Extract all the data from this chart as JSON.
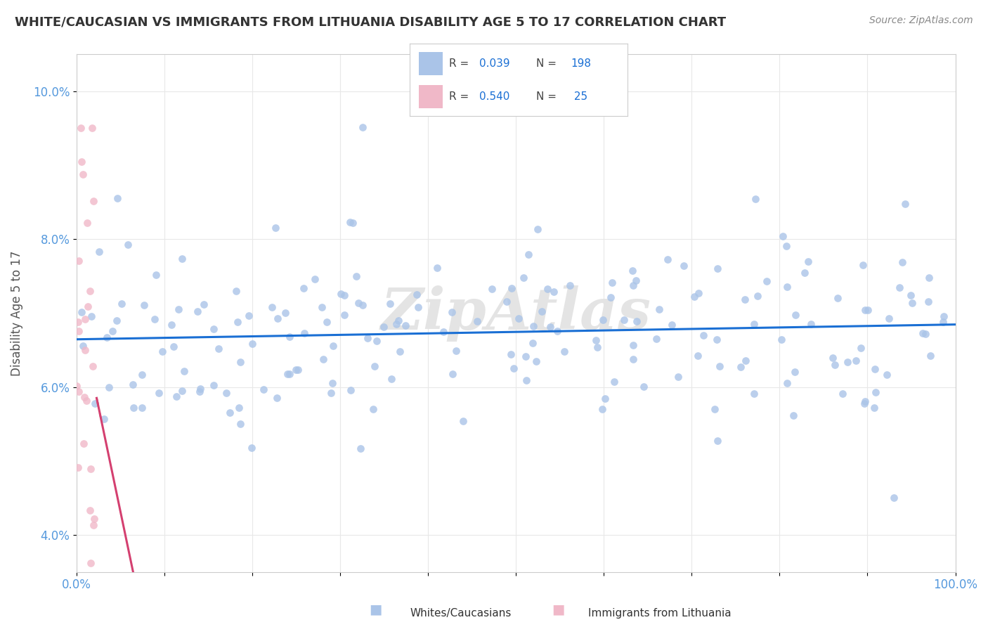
{
  "title": "WHITE/CAUCASIAN VS IMMIGRANTS FROM LITHUANIA DISABILITY AGE 5 TO 17 CORRELATION CHART",
  "source": "Source: ZipAtlas.com",
  "ylabel": "Disability Age 5 to 17",
  "xlim": [
    0,
    100
  ],
  "ylim": [
    3.5,
    10.5
  ],
  "blue_R": 0.039,
  "blue_N": 198,
  "pink_R": 0.54,
  "pink_N": 25,
  "blue_color": "#aac4e8",
  "blue_edge_color": "#aac4e8",
  "blue_line_color": "#1a6fd4",
  "pink_color": "#f0b8c8",
  "pink_edge_color": "#f0b8c8",
  "pink_line_color": "#d44070",
  "watermark": "ZipAtlas",
  "background_color": "#ffffff",
  "grid_color": "#e8e8e8",
  "legend_label_blue": "Whites/Caucasians",
  "legend_label_pink": "Immigrants from Lithuania",
  "tick_color": "#5599dd",
  "title_color": "#333333",
  "ylabel_color": "#555555"
}
